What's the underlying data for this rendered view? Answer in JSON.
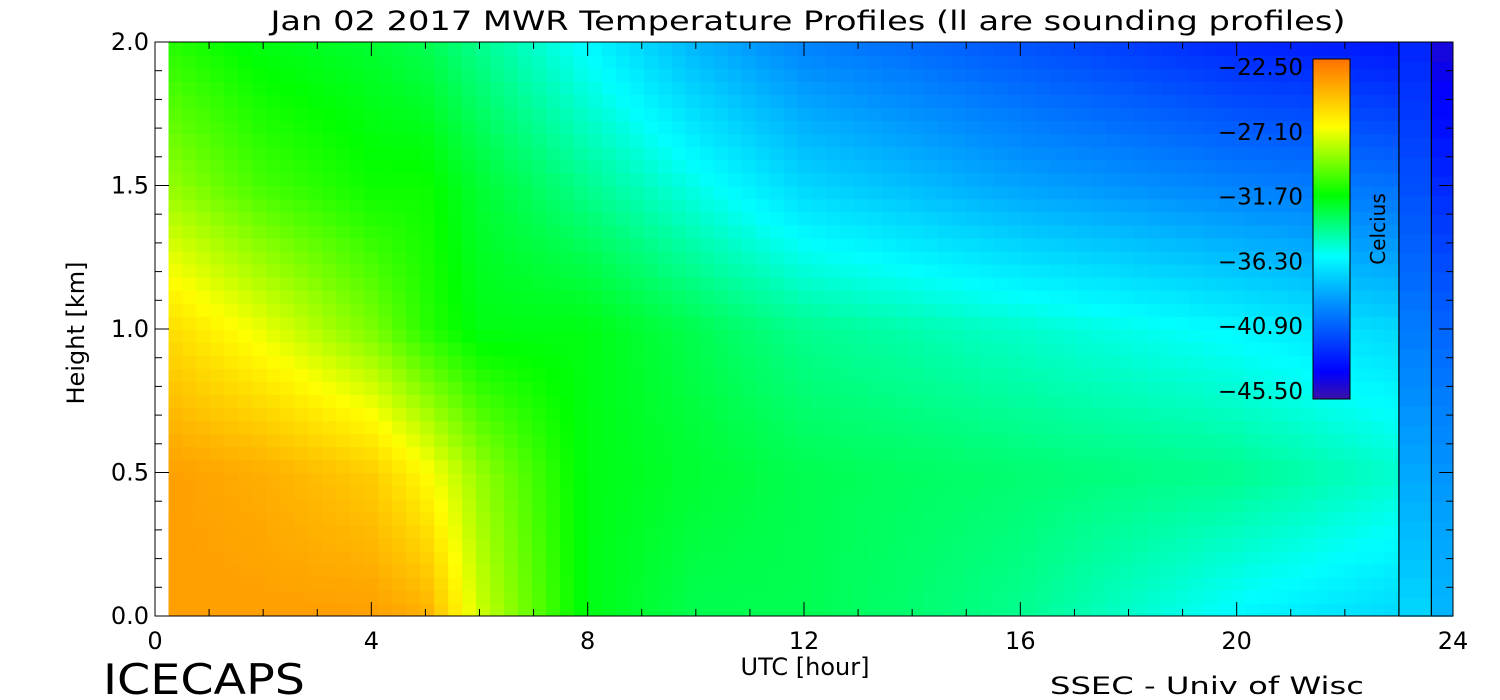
{
  "chart_data": {
    "type": "heatmap",
    "title": "Jan 02 2017 MWR Temperature Profiles (ll are sounding profiles)",
    "xlabel": "UTC [hour]",
    "ylabel": "Height [km]",
    "xlim": [
      0,
      24
    ],
    "ylim": [
      0,
      2
    ],
    "x_ticks": [
      "0",
      "4",
      "8",
      "12",
      "16",
      "20",
      "24"
    ],
    "y_ticks": [
      "0.0",
      "0.5",
      "1.0",
      "1.5",
      "2.0"
    ],
    "colorbar": {
      "label": "Celcius",
      "range": [
        -45.5,
        -22.5
      ],
      "ticks": [
        "-22.50",
        "-27.10",
        "-31.70",
        "-36.30",
        "-40.90",
        "-45.50"
      ],
      "placement": "top-right, inside plot"
    },
    "sounding_times_utc": [
      23,
      23.6
    ],
    "data_start_hour": 0.25,
    "grid": false,
    "series": [
      {
        "name": "Height 0.0 km",
        "x": [
          0.25,
          2,
          4,
          5,
          6,
          8,
          10,
          12,
          16,
          20,
          23
        ],
        "values": [
          -24,
          -24,
          -24,
          -24.5,
          -28,
          -32,
          -33,
          -33,
          -34,
          -36,
          -37
        ]
      },
      {
        "name": "Height 0.5 km",
        "x": [
          0.25,
          2,
          4,
          5,
          6,
          8,
          10,
          12,
          16,
          20,
          23
        ],
        "values": [
          -24,
          -24.5,
          -25.5,
          -27,
          -29,
          -32,
          -32.5,
          -33,
          -33.5,
          -34,
          -35
        ]
      },
      {
        "name": "Height 1.0 km",
        "x": [
          0.25,
          2,
          4,
          5,
          6,
          8,
          10,
          12,
          16,
          20,
          23
        ],
        "values": [
          -26,
          -27.5,
          -29.5,
          -31,
          -32,
          -32,
          -33,
          -34,
          -35,
          -36,
          -37
        ]
      },
      {
        "name": "Height 1.5 km",
        "x": [
          0.25,
          2,
          4,
          5,
          6,
          8,
          10,
          12,
          16,
          20,
          23
        ],
        "values": [
          -29,
          -30.5,
          -31.5,
          -31.5,
          -32.5,
          -34,
          -35.5,
          -37,
          -38.5,
          -39.5,
          -40
        ]
      },
      {
        "name": "Height 2.0 km",
        "x": [
          0.25,
          2,
          4,
          5,
          6,
          8,
          10,
          12,
          16,
          20,
          23
        ],
        "values": [
          -31,
          -32,
          -32.5,
          -33,
          -34,
          -36,
          -38,
          -39.5,
          -41,
          -42.5,
          -43
        ]
      }
    ]
  },
  "footer": {
    "left_label": "ICECAPS",
    "right_label": "SSEC - Univ of Wisc"
  }
}
